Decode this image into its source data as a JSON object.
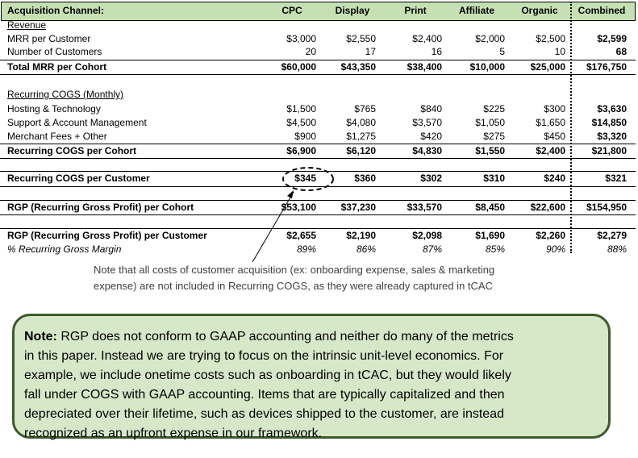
{
  "columns": [
    "Acquisition Channel:",
    "CPC",
    "Display",
    "Print",
    "Affiliate",
    "Organic",
    "Combined"
  ],
  "revenue": {
    "section_label": "Revenue",
    "mrr_label": "MRR per Customer",
    "mrr_values": [
      "$3,000",
      "$2,550",
      "$2,400",
      "$2,000",
      "$2,500",
      "$2,599"
    ],
    "customers_label": "Number of Customers",
    "customers_values": [
      "20",
      "17",
      "16",
      "5",
      "10",
      "68"
    ],
    "total_label": "Total MRR per Cohort",
    "total_values": [
      "$60,000",
      "$43,350",
      "$38,400",
      "$10,000",
      "$25,000",
      "$176,750"
    ]
  },
  "cogs": {
    "section_label": "Recurring COGS (Monthly)",
    "hosting_label": "Hosting & Technology",
    "hosting_values": [
      "$1,500",
      "$765",
      "$840",
      "$225",
      "$300",
      "$3,630"
    ],
    "support_label": "Support & Account Management",
    "support_values": [
      "$4,500",
      "$4,080",
      "$3,570",
      "$1,050",
      "$1,650",
      "$14,850"
    ],
    "merchant_label": "Merchant Fees + Other",
    "merchant_values": [
      "$900",
      "$1,275",
      "$420",
      "$275",
      "$450",
      "$3,320"
    ],
    "cohort_label": "Recurring COGS per Cohort",
    "cohort_values": [
      "$6,900",
      "$6,120",
      "$4,830",
      "$1,550",
      "$2,400",
      "$21,800"
    ],
    "customer_label": "Recurring COGS per Customer",
    "customer_values": [
      "$345",
      "$360",
      "$302",
      "$310",
      "$240",
      "$321"
    ]
  },
  "rgp": {
    "cohort_label": "RGP (Recurring Gross Profit) per Cohort",
    "cohort_values": [
      "$53,100",
      "$37,230",
      "$33,570",
      "$8,450",
      "$22,600",
      "$154,950"
    ],
    "customer_label": "RGP (Recurring Gross Profit) per Customer",
    "customer_values": [
      "$2,655",
      "$2,190",
      "$2,098",
      "$1,690",
      "$2,260",
      "$2,279"
    ],
    "margin_label": "% Recurring Gross Margin",
    "margin_values": [
      "89%",
      "86%",
      "87%",
      "85%",
      "90%",
      "88%"
    ]
  },
  "footnote": {
    "line1": "Note that all costs of customer acquisition (ex: onboarding expense, sales & marketing",
    "line2": "expense) are not included in Recurring COGS, as they were already captured in tCAC"
  },
  "note_box": {
    "bold_label": "Note:",
    "line1": " RGP does not conform to GAAP accounting and neither do many of the metrics",
    "line2": "in this paper. Instead we are trying to focus on the intrinsic unit-level economics. For",
    "line3": "example, we include onetime costs such as onboarding in tCAC, but they would likely",
    "line4": "fall under COGS with GAAP accounting. Items that are typically capitalized and then",
    "line5": "depreciated over their lifetime, such as devices shipped to the customer, are instead",
    "line6": "recognized as an upfront expense in our framework."
  },
  "colors": {
    "header_fill": "#c6e0b4",
    "note_fill": "#d7e8c9",
    "note_border": "#3c5a2c"
  }
}
